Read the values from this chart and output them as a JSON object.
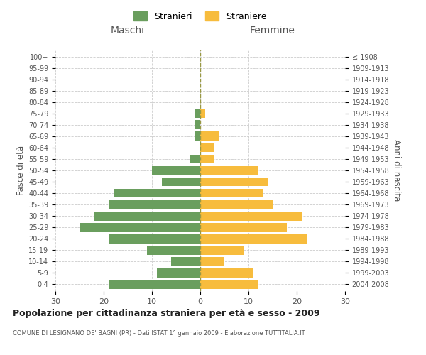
{
  "age_groups": [
    "0-4",
    "5-9",
    "10-14",
    "15-19",
    "20-24",
    "25-29",
    "30-34",
    "35-39",
    "40-44",
    "45-49",
    "50-54",
    "55-59",
    "60-64",
    "65-69",
    "70-74",
    "75-79",
    "80-84",
    "85-89",
    "90-94",
    "95-99",
    "100+"
  ],
  "birth_years": [
    "2004-2008",
    "1999-2003",
    "1994-1998",
    "1989-1993",
    "1984-1988",
    "1979-1983",
    "1974-1978",
    "1969-1973",
    "1964-1968",
    "1959-1963",
    "1954-1958",
    "1949-1953",
    "1944-1948",
    "1939-1943",
    "1934-1938",
    "1929-1933",
    "1924-1928",
    "1919-1923",
    "1914-1918",
    "1909-1913",
    "≤ 1908"
  ],
  "males": [
    19,
    9,
    6,
    11,
    19,
    25,
    22,
    19,
    18,
    8,
    10,
    2,
    0,
    1,
    1,
    1,
    0,
    0,
    0,
    0,
    0
  ],
  "females": [
    12,
    11,
    5,
    9,
    22,
    18,
    21,
    15,
    13,
    14,
    12,
    3,
    3,
    4,
    0,
    1,
    0,
    0,
    0,
    0,
    0
  ],
  "male_color": "#6a9e5e",
  "female_color": "#f7bc3d",
  "title": "Popolazione per cittadinanza straniera per età e sesso - 2009",
  "subtitle": "COMUNE DI LESIGNANO DE' BAGNI (PR) - Dati ISTAT 1° gennaio 2009 - Elaborazione TUTTITALIA.IT",
  "xlabel_left": "Maschi",
  "xlabel_right": "Femmine",
  "ylabel_left": "Fasce di età",
  "ylabel_right": "Anni di nascita",
  "legend_male": "Stranieri",
  "legend_female": "Straniere",
  "xlim": 30,
  "background_color": "#ffffff",
  "grid_color": "#cccccc",
  "bar_height": 0.8
}
